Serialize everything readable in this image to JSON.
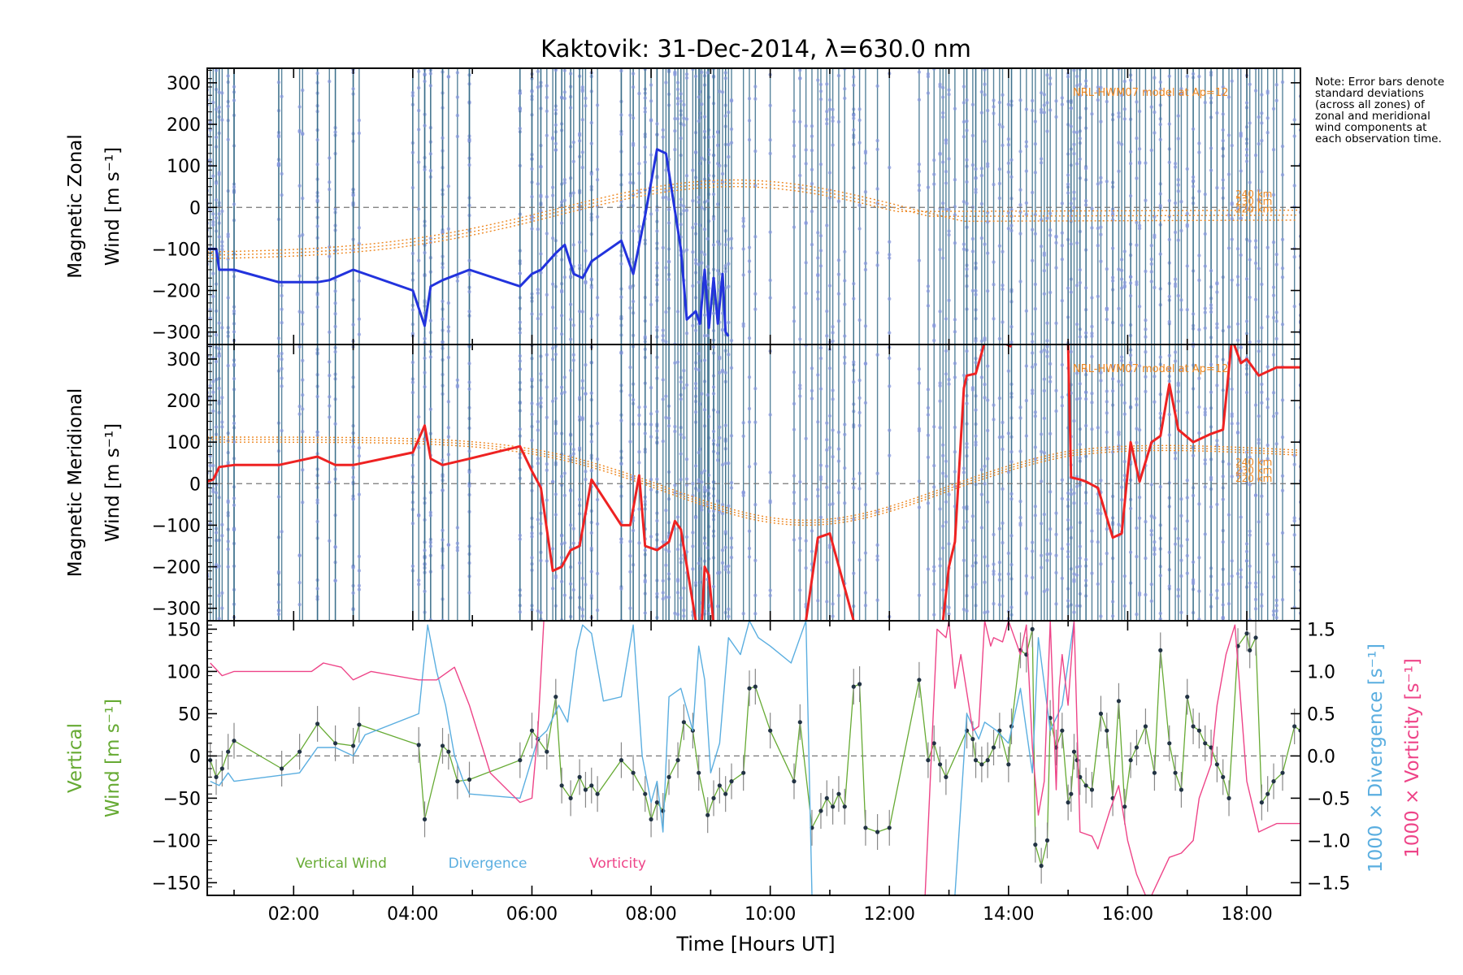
{
  "title": "Kaktovik: 31-Dec-2014, λ=630.0 nm",
  "note": "Note: Error bars denote standard deviations (across all zones) of zonal and meridional wind components at each observation time.",
  "colors": {
    "zonal": "#2233dd",
    "meridional": "#ee2222",
    "vertical": "#66aa33",
    "divergence": "#5aaee0",
    "vorticity": "#ee4488",
    "model": "#ee8822",
    "obs_lines": "#3a6e8a"
  },
  "chart_data": [
    {
      "type": "line",
      "panel": "zonal",
      "ylabel": [
        "Magnetic Zonal",
        "Wind [m s⁻¹]"
      ],
      "ylim": [
        -330,
        335
      ],
      "yticks": [
        300,
        200,
        100,
        0,
        -100,
        -200,
        -300
      ],
      "xlim": [
        0.55,
        18.9
      ],
      "model_label": "NRL-HWM07 model at Ap=12",
      "model_altitudes": [
        "240 km",
        "230 km",
        "220 km"
      ],
      "series": [
        {
          "name": "zonal",
          "x": [
            0.55,
            0.7,
            0.75,
            0.9,
            1.0,
            1.75,
            2.15,
            2.4,
            2.6,
            3.0,
            4.0,
            4.2,
            4.3,
            4.5,
            4.95,
            5.8,
            6.0,
            6.15,
            6.4,
            6.55,
            6.7,
            6.85,
            7.0,
            7.5,
            7.7,
            7.9,
            8.1,
            8.25,
            8.5,
            8.6,
            8.75,
            8.82,
            8.9,
            8.97,
            9.05,
            9.12,
            9.2,
            9.25,
            9.3
          ],
          "y": [
            -100,
            -100,
            -150,
            -150,
            -150,
            -180,
            -180,
            -180,
            -175,
            -150,
            -200,
            -285,
            -190,
            -175,
            -150,
            -190,
            -160,
            -150,
            -110,
            -90,
            -160,
            -170,
            -130,
            -80,
            -160,
            -20,
            140,
            130,
            -100,
            -270,
            -250,
            -280,
            -150,
            -290,
            -170,
            -280,
            -160,
            -300,
            -310
          ]
        }
      ]
    },
    {
      "type": "line",
      "panel": "meridional",
      "ylabel": [
        "Magnetic Meridional",
        "Wind [m s⁻¹]"
      ],
      "ylim": [
        -330,
        335
      ],
      "yticks": [
        300,
        200,
        100,
        0,
        -100,
        -200,
        -300
      ],
      "xlim": [
        0.55,
        18.9
      ],
      "model_label": "NRL-HWM07 model at Ap=12",
      "model_altitudes": [
        "240 km",
        "230 km",
        "220 km"
      ],
      "series": [
        {
          "name": "meridional",
          "x": [
            0.55,
            0.65,
            0.75,
            1.0,
            1.75,
            2.4,
            2.7,
            3.0,
            4.0,
            4.2,
            4.3,
            4.5,
            4.95,
            5.8,
            6.0,
            6.15,
            6.35,
            6.5,
            6.65,
            6.8,
            7.0,
            7.5,
            7.65,
            7.8,
            7.9,
            8.1,
            8.3,
            8.4,
            8.5,
            8.75,
            8.85,
            8.9,
            8.97,
            9.05
          ],
          "y": [
            5,
            10,
            40,
            45,
            45,
            65,
            45,
            45,
            75,
            140,
            60,
            45,
            60,
            90,
            30,
            -10,
            -210,
            -200,
            -160,
            -150,
            10,
            -100,
            -100,
            20,
            -150,
            -160,
            -140,
            -90,
            -110,
            -330,
            -340,
            -200,
            -220,
            -340
          ]
        },
        {
          "name": "meridional",
          "x": [
            10.6,
            10.8,
            11.0,
            11.4
          ],
          "y": [
            -330,
            -130,
            -120,
            -330
          ]
        },
        {
          "name": "meridional",
          "x": [
            12.9,
            13.0,
            13.1,
            13.25,
            13.3,
            13.45,
            13.6
          ],
          "y": [
            -330,
            -200,
            -140,
            230,
            260,
            265,
            340
          ]
        },
        {
          "name": "meridional",
          "x": [
            13.9,
            14.05
          ],
          "y": [
            340,
            330
          ]
        },
        {
          "name": "meridional",
          "x": [
            14.6,
            15.0,
            15.05,
            15.2,
            15.3,
            15.5,
            15.75,
            15.9,
            16.05,
            16.2,
            16.4,
            16.55,
            16.7,
            16.85,
            17.1,
            17.4,
            17.6,
            17.75,
            17.9,
            18.0,
            18.2,
            18.5,
            18.9
          ],
          "y": [
            340,
            340,
            15,
            10,
            5,
            -10,
            -130,
            -120,
            100,
            5,
            100,
            115,
            240,
            130,
            100,
            120,
            130,
            350,
            290,
            300,
            260,
            280,
            280
          ]
        }
      ]
    },
    {
      "type": "line",
      "panel": "vertical",
      "ylabel": [
        "Vertical",
        "Wind [m s⁻¹]"
      ],
      "y2label": "1000 × Divergence [s⁻¹]",
      "y3label": "1000 × Vorticity [s⁻¹]",
      "ylim": [
        -165,
        160
      ],
      "yticks": [
        150,
        100,
        50,
        0,
        -50,
        -100,
        -150
      ],
      "y2lim": [
        -1.65,
        1.6
      ],
      "y2ticks": [
        1.5,
        1.0,
        0.5,
        0.0,
        -0.5,
        -1.0,
        -1.5
      ],
      "xlim": [
        0.55,
        18.9
      ],
      "xlabel": "Time [Hours UT]",
      "xticks": [
        2,
        4,
        6,
        8,
        10,
        12,
        14,
        16,
        18
      ],
      "xticklabels": [
        "02:00",
        "04:00",
        "06:00",
        "08:00",
        "10:00",
        "12:00",
        "14:00",
        "16:00",
        "18:00"
      ],
      "legend": [
        "Vertical Wind",
        "Divergence",
        "Vorticity"
      ],
      "series": [
        {
          "name": "Vertical Wind",
          "axis": "left",
          "x": [
            0.6,
            0.7,
            0.8,
            0.9,
            1.0,
            1.8,
            2.1,
            2.4,
            2.7,
            3.0,
            3.1,
            4.1,
            4.2,
            4.5,
            4.6,
            4.75,
            4.95,
            5.8,
            6.0,
            6.1,
            6.25,
            6.4,
            6.5,
            6.65,
            6.8,
            6.9,
            7.0,
            7.1,
            7.5,
            7.7,
            7.9,
            8.0,
            8.1,
            8.2,
            8.3,
            8.45,
            8.55,
            8.7,
            8.8,
            8.95,
            9.05,
            9.15,
            9.25,
            9.35,
            9.55,
            9.65,
            9.75,
            10.0,
            10.4,
            10.5,
            10.7,
            10.85,
            10.95,
            11.05,
            11.15,
            11.25,
            11.4,
            11.5,
            11.6,
            11.8,
            12.0,
            12.5,
            12.65,
            12.75,
            12.85,
            12.95,
            13.3,
            13.4,
            13.45,
            13.55,
            13.65,
            13.75,
            13.85,
            14.0,
            14.05,
            14.2,
            14.3,
            14.4,
            14.45,
            14.55,
            14.65,
            14.7,
            14.8,
            14.9,
            15.0,
            15.05,
            15.1,
            15.15,
            15.2,
            15.3,
            15.4,
            15.55,
            15.65,
            15.75,
            15.85,
            15.95,
            16.05,
            16.15,
            16.3,
            16.45,
            16.55,
            16.7,
            16.8,
            16.9,
            17.0,
            17.1,
            17.2,
            17.3,
            17.4,
            17.5,
            17.6,
            17.7,
            17.85,
            18.0,
            18.05,
            18.15,
            18.25,
            18.35,
            18.45,
            18.6,
            18.8,
            18.9
          ],
          "y": [
            -5,
            -25,
            -15,
            5,
            18,
            -15,
            5,
            38,
            15,
            12,
            37,
            13,
            -75,
            12,
            5,
            -30,
            -28,
            -5,
            30,
            20,
            5,
            70,
            -35,
            -50,
            -25,
            -40,
            -35,
            -45,
            -5,
            -20,
            -45,
            -75,
            -55,
            -65,
            -25,
            -5,
            40,
            30,
            -20,
            -70,
            -50,
            -35,
            -45,
            -30,
            -20,
            80,
            82,
            30,
            -30,
            40,
            -85,
            -65,
            -50,
            -60,
            -45,
            -60,
            82,
            85,
            -85,
            -90,
            -85,
            90,
            -5,
            15,
            -10,
            -25,
            30,
            20,
            -5,
            -10,
            -5,
            10,
            30,
            -10,
            35,
            125,
            120,
            150,
            -105,
            -130,
            -100,
            45,
            10,
            30,
            -55,
            -45,
            5,
            -5,
            -25,
            -35,
            -40,
            50,
            30,
            -50,
            65,
            -60,
            -5,
            10,
            35,
            -20,
            125,
            15,
            -20,
            -40,
            70,
            35,
            30,
            15,
            10,
            -10,
            -25,
            -50,
            130,
            145,
            125,
            140,
            -55,
            -45,
            -30,
            -20,
            35,
            30
          ]
        },
        {
          "name": "Divergence",
          "axis": "right",
          "x": [
            0.6,
            0.75,
            0.9,
            1.0,
            2.1,
            2.4,
            2.7,
            3.0,
            3.2,
            4.1,
            4.25,
            4.4,
            4.55,
            4.7,
            4.85,
            4.95,
            5.8,
            6.1,
            6.25,
            6.45,
            6.6,
            6.75,
            6.85,
            7.0,
            7.2,
            7.5,
            7.7,
            7.85,
            8.0,
            8.1,
            8.2,
            8.3,
            8.5,
            8.7,
            8.8,
            8.9,
            9.0,
            9.15,
            9.3,
            9.5,
            9.65,
            9.8,
            10.0,
            10.35,
            10.45,
            10.6,
            10.7
          ],
          "y": [
            -0.3,
            -0.35,
            -0.2,
            -0.3,
            -0.2,
            0.1,
            0.1,
            0.0,
            0.25,
            0.5,
            1.55,
            1.0,
            0.6,
            0.0,
            -0.3,
            -0.45,
            -0.5,
            0.2,
            0.3,
            0.6,
            0.4,
            1.25,
            1.55,
            1.45,
            0.65,
            0.7,
            1.55,
            0.0,
            -0.55,
            -0.3,
            -0.9,
            0.7,
            0.8,
            0.3,
            1.3,
            0.9,
            -0.2,
            0.15,
            1.4,
            1.2,
            1.6,
            1.4,
            1.3,
            1.1,
            1.3,
            1.6,
            -1.65
          ]
        },
        {
          "name": "Divergence",
          "axis": "right",
          "x": [
            13.1,
            13.3,
            13.5,
            13.6,
            13.8,
            14.0,
            14.2,
            14.4,
            14.5,
            14.7,
            14.9,
            15.1
          ],
          "y": [
            -1.65,
            0.5,
            0.2,
            0.4,
            0.3,
            0.15,
            0.8,
            -0.2,
            1.4,
            0.3,
            0.6,
            1.6
          ]
        },
        {
          "name": "Vorticity",
          "axis": "right",
          "x": [
            0.6,
            0.8,
            1.0,
            2.3,
            2.5,
            2.8,
            3.0,
            3.3,
            4.1,
            4.4,
            4.7,
            4.95,
            5.3,
            5.8,
            6.0,
            6.1,
            6.2
          ],
          "y": [
            1.1,
            0.95,
            1.0,
            1.0,
            1.1,
            1.05,
            0.9,
            1.0,
            0.9,
            0.9,
            1.05,
            0.6,
            -0.2,
            -0.55,
            -0.5,
            0.3,
            1.6
          ]
        },
        {
          "name": "Vorticity",
          "axis": "right",
          "x": [
            12.6,
            12.8,
            12.95,
            13.0,
            13.1,
            13.2,
            13.4,
            13.5,
            13.6,
            13.7,
            13.75,
            13.9,
            14.0,
            14.1,
            14.2,
            14.3,
            14.4,
            14.5,
            14.6,
            14.7,
            14.8,
            14.85,
            14.9,
            15.0,
            15.1,
            15.2,
            15.4,
            15.5,
            15.7,
            15.85,
            16.0,
            16.15,
            16.3
          ],
          "y": [
            -1.65,
            1.5,
            1.4,
            1.6,
            0.8,
            1.2,
            0.3,
            0.35,
            1.6,
            1.3,
            1.4,
            1.35,
            1.6,
            1.4,
            1.2,
            1.55,
            0.1,
            -0.7,
            -0.3,
            1.6,
            -0.4,
            0.8,
            1.2,
            0.6,
            1.6,
            -0.9,
            -0.95,
            -1.1,
            -0.65,
            -0.35,
            -1.0,
            -1.4,
            -1.65
          ]
        },
        {
          "name": "Vorticity",
          "axis": "right",
          "x": [
            16.4,
            16.7,
            16.9,
            17.1,
            17.2,
            17.4,
            17.5,
            17.65,
            17.8,
            18.0,
            18.1,
            18.2,
            18.35,
            18.5,
            18.7,
            18.9
          ],
          "y": [
            -1.65,
            -1.2,
            -1.15,
            -1.0,
            -0.5,
            -0.1,
            0.6,
            1.2,
            1.55,
            -0.3,
            -0.6,
            -0.9,
            -0.85,
            -0.8,
            -0.8,
            -0.8
          ]
        }
      ]
    }
  ]
}
